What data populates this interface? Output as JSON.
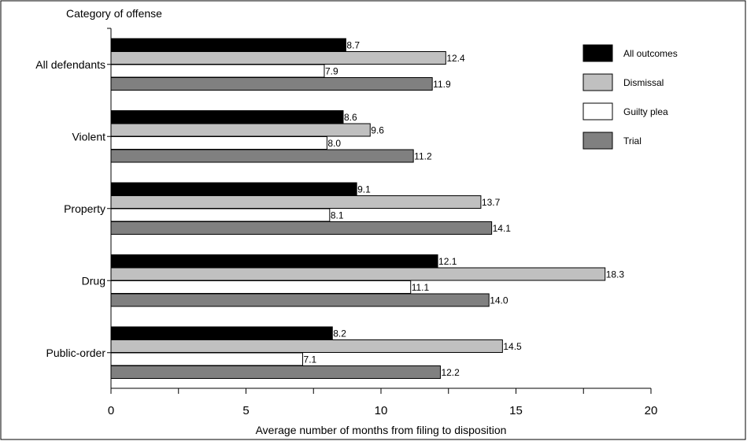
{
  "chart_data": {
    "type": "bar",
    "orientation": "horizontal",
    "title": "Category of offense",
    "xlabel": "Average number of months from filing to disposition",
    "xlim": [
      0,
      20
    ],
    "xticks": [
      0,
      5,
      10,
      15,
      20
    ],
    "categories": [
      "All defendants",
      "Violent",
      "Property",
      "Drug",
      "Public-order"
    ],
    "series": [
      {
        "name": "All outcomes",
        "color": "#000000",
        "values": [
          8.7,
          8.6,
          9.1,
          12.1,
          8.2
        ],
        "labels": [
          "8.7",
          "8.6",
          "9.1",
          "12.1",
          "8.2"
        ]
      },
      {
        "name": "Dismissal",
        "color": "#c0c0c0",
        "values": [
          12.4,
          9.6,
          13.7,
          18.3,
          14.5
        ],
        "labels": [
          "12.4",
          "9.6",
          "13.7",
          "18.3",
          "14.5"
        ]
      },
      {
        "name": "Guilty plea",
        "color": "#ffffff",
        "values": [
          7.9,
          8.0,
          8.1,
          11.1,
          7.1
        ],
        "labels": [
          "7.9",
          "8.0",
          "8.1",
          "11.1",
          "7.1"
        ]
      },
      {
        "name": "Trial",
        "color": "#808080",
        "values": [
          11.9,
          11.2,
          14.1,
          14.0,
          12.2
        ],
        "labels": [
          "11.9",
          "11.2",
          "14.1",
          "14.0",
          "12.2"
        ]
      }
    ],
    "grid": false,
    "legend": "top-right"
  }
}
